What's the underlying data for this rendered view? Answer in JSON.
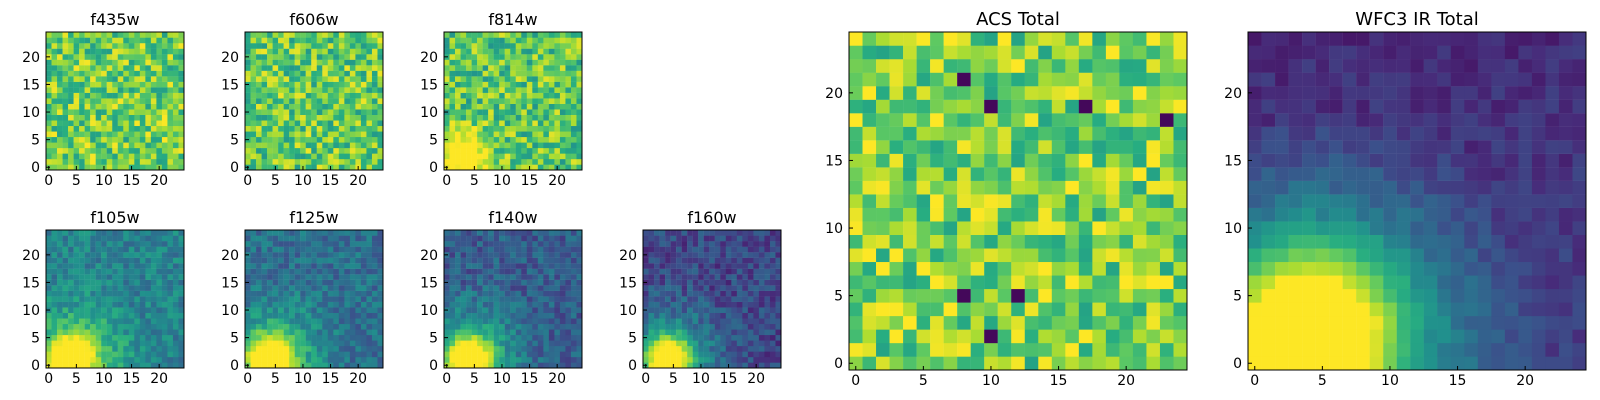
{
  "chart_data": [
    {
      "type": "heatmap",
      "title": "f435w",
      "xticks": [
        0,
        5,
        10,
        15,
        20
      ],
      "yticks": [
        0,
        5,
        10,
        15,
        20
      ],
      "xlim": [
        0,
        24
      ],
      "ylim": [
        0,
        24
      ],
      "colormap": "viridis",
      "grid": false,
      "description_level": "mean-normalized-0-1",
      "mean_level": 0.78,
      "noise": "high",
      "seed": 11
    },
    {
      "type": "heatmap",
      "title": "f606w",
      "xticks": [
        0,
        5,
        10,
        15,
        20
      ],
      "yticks": [
        0,
        5,
        10,
        15,
        20
      ],
      "xlim": [
        0,
        24
      ],
      "ylim": [
        0,
        24
      ],
      "colormap": "viridis",
      "grid": false,
      "mean_level": 0.76,
      "noise": "high",
      "seed": 23
    },
    {
      "type": "heatmap",
      "title": "f814w",
      "xticks": [
        0,
        5,
        10,
        15,
        20
      ],
      "yticks": [
        0,
        5,
        10,
        15,
        20
      ],
      "xlim": [
        0,
        24
      ],
      "ylim": [
        0,
        24
      ],
      "colormap": "viridis",
      "grid": false,
      "mean_level": 0.74,
      "noise": "high",
      "seed": 37,
      "hotspot": {
        "x": 3,
        "y": 2,
        "level": 1.0
      }
    },
    {
      "type": "heatmap",
      "title": "f105w",
      "xticks": [
        0,
        5,
        10,
        15,
        20
      ],
      "yticks": [
        0,
        5,
        10,
        15,
        20
      ],
      "xlim": [
        0,
        24
      ],
      "ylim": [
        0,
        24
      ],
      "colormap": "viridis",
      "grid": false,
      "mean_level": 0.45,
      "noise": "medium",
      "seed": 41,
      "hotspot": {
        "x": 4,
        "y": 1,
        "level": 1.0
      }
    },
    {
      "type": "heatmap",
      "title": "f125w",
      "xticks": [
        0,
        5,
        10,
        15,
        20
      ],
      "yticks": [
        0,
        5,
        10,
        15,
        20
      ],
      "xlim": [
        0,
        24
      ],
      "ylim": [
        0,
        24
      ],
      "colormap": "viridis",
      "grid": false,
      "mean_level": 0.37,
      "noise": "medium",
      "seed": 53,
      "hotspot": {
        "x": 4,
        "y": 1,
        "level": 1.0
      }
    },
    {
      "type": "heatmap",
      "title": "f140w",
      "xticks": [
        0,
        5,
        10,
        15,
        20
      ],
      "yticks": [
        0,
        5,
        10,
        15,
        20
      ],
      "xlim": [
        0,
        24
      ],
      "ylim": [
        0,
        24
      ],
      "colormap": "viridis",
      "grid": false,
      "mean_level": 0.3,
      "noise": "medium",
      "seed": 67,
      "hotspot": {
        "x": 4,
        "y": 1,
        "level": 1.0
      }
    },
    {
      "type": "heatmap",
      "title": "f160w",
      "xticks": [
        0,
        5,
        10,
        15,
        20
      ],
      "yticks": [
        0,
        5,
        10,
        15,
        20
      ],
      "xlim": [
        0,
        24
      ],
      "ylim": [
        0,
        24
      ],
      "colormap": "viridis",
      "grid": false,
      "mean_level": 0.22,
      "noise": "medium",
      "seed": 79,
      "hotspot": {
        "x": 4,
        "y": 1,
        "level": 1.0
      }
    },
    {
      "type": "heatmap",
      "title": "ACS Total",
      "xticks": [
        0,
        5,
        10,
        15,
        20
      ],
      "yticks": [
        0,
        5,
        10,
        15,
        20
      ],
      "xlim": [
        0,
        24
      ],
      "ylim": [
        0,
        24
      ],
      "colormap": "viridis",
      "grid": false,
      "mean_level": 0.8,
      "noise": "high",
      "seed": 97,
      "dark_cells": [
        [
          8,
          21
        ],
        [
          10,
          19
        ],
        [
          17,
          19
        ],
        [
          23,
          18
        ],
        [
          8,
          5
        ],
        [
          12,
          5
        ],
        [
          10,
          2
        ]
      ]
    },
    {
      "type": "heatmap",
      "title": "WFC3 IR Total",
      "xticks": [
        0,
        5,
        10,
        15,
        20
      ],
      "yticks": [
        0,
        5,
        10,
        15,
        20
      ],
      "xlim": [
        0,
        24
      ],
      "ylim": [
        0,
        24
      ],
      "colormap": "viridis",
      "grid": false,
      "mean_level": 0.2,
      "noise": "low",
      "seed": 109,
      "hotspot": {
        "x": 4,
        "y": 2,
        "level": 1.0
      }
    }
  ]
}
